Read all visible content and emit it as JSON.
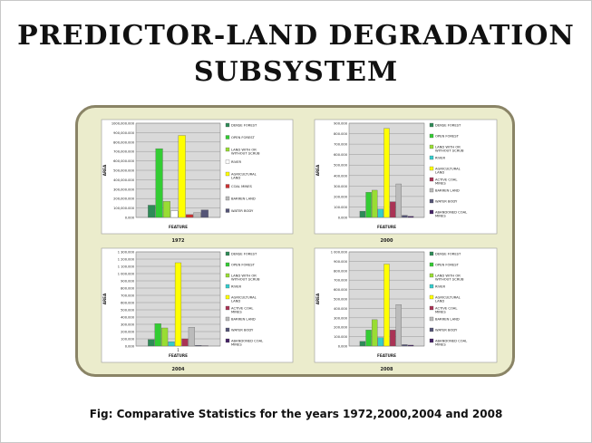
{
  "slide": {
    "title_line1": "PREDICTOR-LAND DEGRADATION",
    "title_line2": "SUBSYSTEM",
    "caption": "Fig: Comparative Statistics for the years 1972,2000,2004 and 2008"
  },
  "chart_data": [
    {
      "type": "bar",
      "title": "1972",
      "xlabel": "FEATURE",
      "ylabel": "AREA",
      "ylim": [
        0,
        1000000
      ],
      "yticks": [
        "0.000",
        "100,000.000",
        "200,000.000",
        "300,000.000",
        "400,000.000",
        "500,000.000",
        "600,000.000",
        "700,000.000",
        "800,000.000",
        "900,000.000",
        "1000,000.000"
      ],
      "categories": [
        "DENSE FOREST",
        "OPEN FOREST",
        "LAND WITH OR WITHOUT SCRUB",
        "RIVER",
        "AGRICULTURAL LAND",
        "COAL MINES",
        "BARREN LAND",
        "WATER BODY"
      ],
      "values": [
        130000,
        730000,
        170000,
        70000,
        870000,
        30000,
        50000,
        80000
      ],
      "colors": [
        "#2e8b57",
        "#33cc33",
        "#99dd33",
        "#ffffff",
        "#ffff00",
        "#cc3333",
        "#bbbbbb",
        "#555577"
      ],
      "grid": true,
      "legend": "right"
    },
    {
      "type": "bar",
      "title": "2000",
      "xlabel": "FEATURE",
      "ylabel": "AREA",
      "ylim": [
        0,
        900000
      ],
      "yticks": [
        "0.000",
        "100.000",
        "200.000",
        "300.000",
        "400.000",
        "500.000",
        "600.000",
        "700.000",
        "800.000",
        "900.000"
      ],
      "categories": [
        "DENSE FOREST",
        "OPEN FOREST",
        "LAND WITH OR WITHOUT SCRUB",
        "RIVER",
        "AGRICULTURAL LAND",
        "ACTIVE COAL MINES",
        "BARREN LAND",
        "WATER BODY",
        "ABANDONED COAL MINES"
      ],
      "values": [
        60000,
        240000,
        260000,
        80000,
        850000,
        150000,
        320000,
        20000,
        10000
      ],
      "colors": [
        "#2e8b57",
        "#33cc33",
        "#99dd33",
        "#33cccc",
        "#ffff00",
        "#aa3355",
        "#bbbbbb",
        "#555577",
        "#442266"
      ],
      "grid": true,
      "legend": "right"
    },
    {
      "type": "bar",
      "title": "2004",
      "xlabel": "FEATURE",
      "ylabel": "AREA",
      "ylim": [
        0,
        1300000
      ],
      "yticks": [
        "0.000",
        "100.000",
        "200.000",
        "300.000",
        "400.000",
        "500.000",
        "600.000",
        "700.000",
        "800.000",
        "900.000",
        "1 000.000",
        "1 100.000",
        "1 200.000",
        "1 300.000"
      ],
      "categories": [
        "DENSE FOREST",
        "OPEN FOREST",
        "LAND WITH OR WITHOUT SCRUB",
        "RIVER",
        "AGRICULTURAL LAND",
        "ACTIVE COAL MINES",
        "BARREN LAND",
        "WATER BODY",
        "ABANDONED COAL MINES"
      ],
      "values": [
        90000,
        310000,
        250000,
        60000,
        1150000,
        100000,
        260000,
        10000,
        5000
      ],
      "colors": [
        "#2e8b57",
        "#33cc33",
        "#99dd33",
        "#33cccc",
        "#ffff00",
        "#aa3355",
        "#bbbbbb",
        "#555577",
        "#442266"
      ],
      "xticks": [
        "1"
      ],
      "grid": true,
      "legend": "right"
    },
    {
      "type": "bar",
      "title": "2008",
      "xlabel": "FEATURE",
      "ylabel": "AREA",
      "ylim": [
        0,
        1000000
      ],
      "yticks": [
        "0.000",
        "100.000",
        "200.000",
        "300.000",
        "400.000",
        "500.000",
        "600.000",
        "700.000",
        "800.000",
        "900.000",
        "1 000.000"
      ],
      "categories": [
        "DENSE FOREST",
        "OPEN FOREST",
        "LAND WITH OR WITHOUT SCRUB",
        "RIVER",
        "AGRICULTURAL LAND",
        "ACTIVE COAL MINES",
        "BARREN LAND",
        "WATER BODY",
        "ABANDONED COAL MINES"
      ],
      "values": [
        50000,
        170000,
        280000,
        90000,
        870000,
        170000,
        440000,
        15000,
        10000
      ],
      "colors": [
        "#2e8b57",
        "#33cc33",
        "#99dd33",
        "#33cccc",
        "#ffff00",
        "#aa3355",
        "#bbbbbb",
        "#555577",
        "#442266"
      ],
      "grid": true,
      "legend": "right"
    }
  ]
}
